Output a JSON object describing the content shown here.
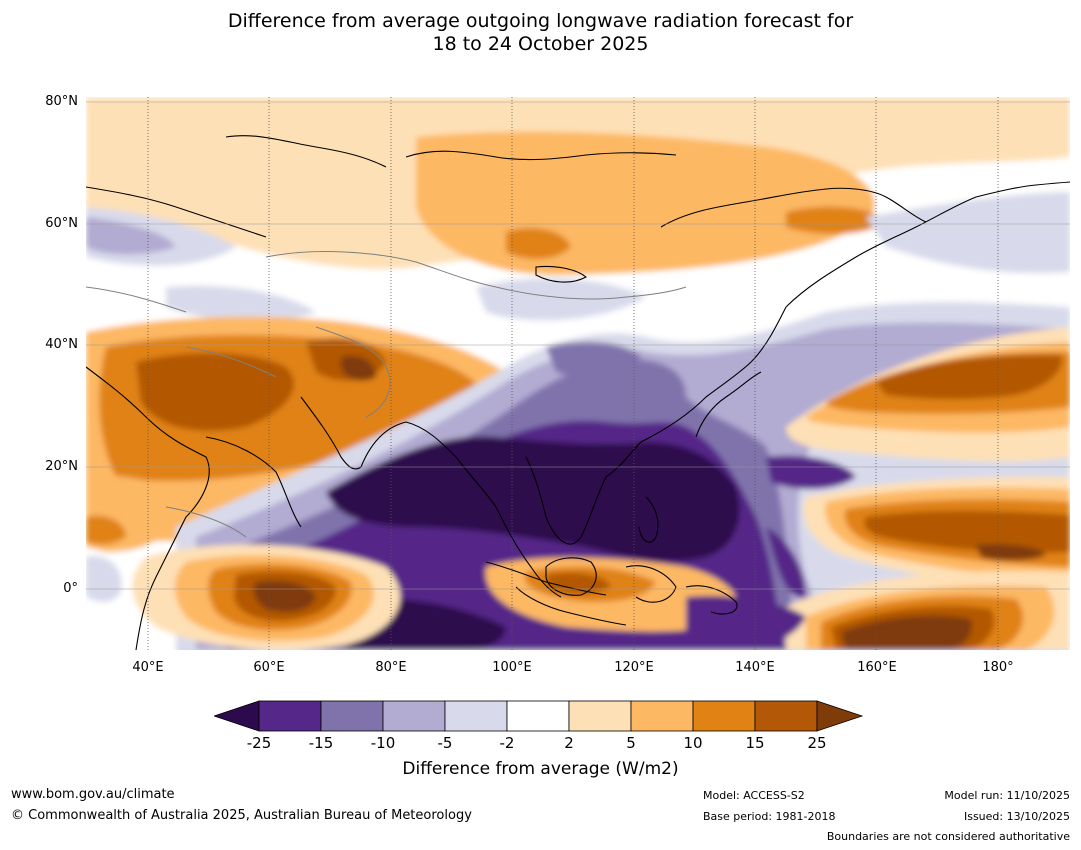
{
  "title_line1": "Difference from average outgoing longwave radiation forecast for",
  "title_line2": "18 to 24 October 2025",
  "map": {
    "lat_labels": [
      "80°N",
      "60°N",
      "40°N",
      "20°N",
      "0°"
    ],
    "lon_labels": [
      "40°E",
      "60°E",
      "80°E",
      "100°E",
      "120°E",
      "140°E",
      "160°E",
      "180°"
    ]
  },
  "legend": {
    "ticks": [
      "-25",
      "-15",
      "-10",
      "-5",
      "-2",
      "2",
      "5",
      "10",
      "15",
      "25"
    ],
    "colors": {
      "below_-25": "#2d0a4e",
      "-25_-15": "#542788",
      "-15_-10": "#8073ac",
      "-10_-5": "#b2abd2",
      "-5_-2": "#d8daeb",
      "-2_2": "#ffffff",
      "2_5": "#fee0b6",
      "5_10": "#fdb863",
      "10_15": "#e08214",
      "15_25": "#b35806",
      "above_25": "#7f3b08"
    },
    "label": "Difference from average (W/m2)"
  },
  "footer": {
    "website": "www.bom.gov.au/climate",
    "copyright": "© Commonwealth of Australia 2025, Australian Bureau of Meteorology",
    "model": "Model: ACCESS-S2",
    "base_period": "Base period: 1981-2018",
    "model_run": "Model run: 11/10/2025",
    "issued": "Issued: 13/10/2025",
    "disclaimer": "Boundaries are not considered authoritative"
  }
}
